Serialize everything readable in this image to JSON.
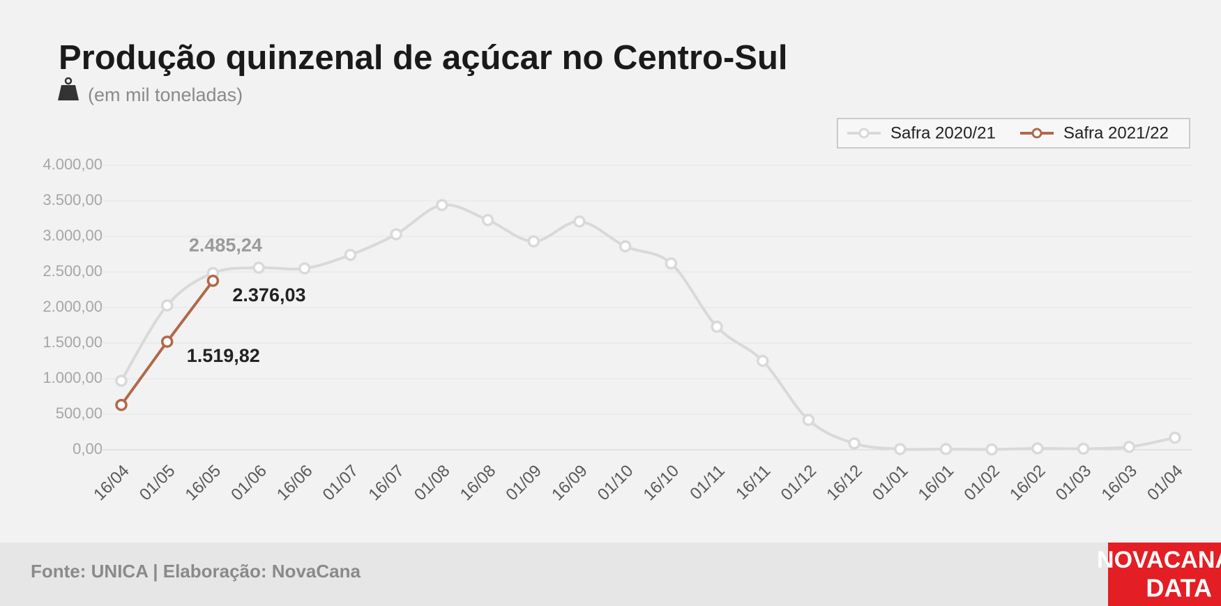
{
  "chart_data": {
    "type": "line",
    "title": "Produção quinzenal de açúcar no Centro-Sul",
    "subtitle": "(em mil toneladas)",
    "source": "Fonte: UNICA | Elaboração: NovaCana",
    "logo": [
      "NOVACANA",
      "DATA"
    ],
    "categories": [
      "16/04",
      "01/05",
      "16/05",
      "01/06",
      "16/06",
      "01/07",
      "16/07",
      "01/08",
      "16/08",
      "01/09",
      "16/09",
      "01/10",
      "16/10",
      "01/11",
      "16/11",
      "01/12",
      "16/12",
      "01/01",
      "16/01",
      "01/02",
      "16/02",
      "01/03",
      "16/03",
      "01/04"
    ],
    "series": [
      {
        "name": "Safra 2020/21",
        "color": "#d9d9d9",
        "smooth": true,
        "values": [
          970,
          2030,
          2485.24,
          2560,
          2550,
          2740,
          3030,
          3440,
          3230,
          2930,
          3210,
          2860,
          2620,
          1730,
          1250,
          420,
          90,
          10,
          10,
          5,
          20,
          15,
          40,
          170
        ],
        "value_labels": [
          null,
          null,
          "2.485,24",
          null,
          null,
          null,
          null,
          null,
          null,
          null,
          null,
          null,
          null,
          null,
          null,
          null,
          null,
          null,
          null,
          null,
          null,
          null,
          null,
          null
        ],
        "label_color": "#9a9a9a"
      },
      {
        "name": "Safra 2021/22",
        "color": "#b0694a",
        "smooth": false,
        "values": [
          630,
          1519.82,
          2376.03,
          null,
          null,
          null,
          null,
          null,
          null,
          null,
          null,
          null,
          null,
          null,
          null,
          null,
          null,
          null,
          null,
          null,
          null,
          null,
          null,
          null
        ],
        "value_labels": [
          null,
          "1.519,82",
          "2.376,03",
          null,
          null,
          null,
          null,
          null,
          null,
          null,
          null,
          null,
          null,
          null,
          null,
          null,
          null,
          null,
          null,
          null,
          null,
          null,
          null,
          null
        ],
        "label_color": "#222222"
      }
    ],
    "ylim": [
      0,
      4000
    ],
    "yticks": [
      {
        "value": 0,
        "label": "0,00"
      },
      {
        "value": 500,
        "label": "500,00"
      },
      {
        "value": 1000,
        "label": "1.000,00"
      },
      {
        "value": 1500,
        "label": "1.500,00"
      },
      {
        "value": 2000,
        "label": "2.000,00"
      },
      {
        "value": 2500,
        "label": "2.500,00"
      },
      {
        "value": 3000,
        "label": "3.000,00"
      },
      {
        "value": 3500,
        "label": "3.500,00"
      },
      {
        "value": 4000,
        "label": "4.000,00"
      }
    ],
    "grid": true,
    "legend": "top-right"
  }
}
